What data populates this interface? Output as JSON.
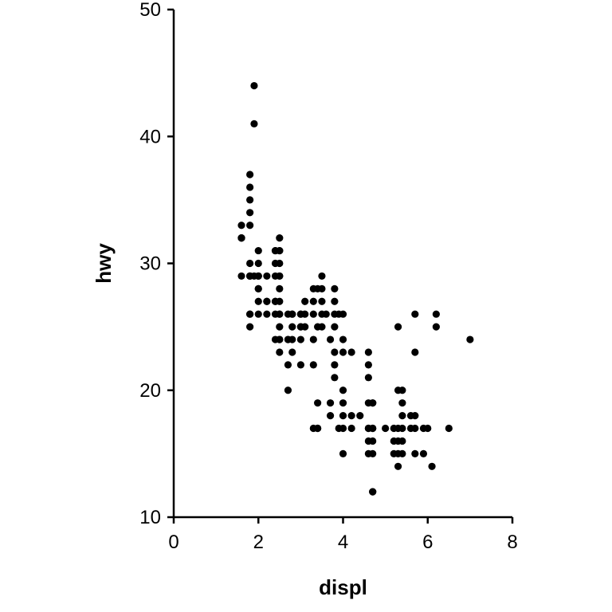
{
  "chart_data": {
    "type": "scatter",
    "title": "",
    "xlabel": "displ",
    "ylabel": "hwy",
    "xlim": [
      0,
      8
    ],
    "ylim": [
      10,
      50
    ],
    "xticks": [
      0,
      2,
      4,
      6,
      8
    ],
    "yticks": [
      10,
      20,
      30,
      40,
      50
    ],
    "grid": false,
    "legend": "none",
    "point_color": "#000000",
    "points": [
      [
        1.6,
        33
      ],
      [
        1.6,
        32
      ],
      [
        1.6,
        32
      ],
      [
        1.6,
        29
      ],
      [
        1.6,
        32
      ],
      [
        1.8,
        29
      ],
      [
        1.8,
        29
      ],
      [
        1.8,
        29
      ],
      [
        1.8,
        26
      ],
      [
        1.8,
        25
      ],
      [
        1.8,
        30
      ],
      [
        1.8,
        33
      ],
      [
        1.8,
        34
      ],
      [
        1.8,
        35
      ],
      [
        1.8,
        36
      ],
      [
        1.8,
        37
      ],
      [
        1.8,
        29
      ],
      [
        1.8,
        26
      ],
      [
        1.9,
        44
      ],
      [
        1.9,
        41
      ],
      [
        1.9,
        29
      ],
      [
        2.0,
        31
      ],
      [
        2.0,
        30
      ],
      [
        2.0,
        29
      ],
      [
        2.0,
        28
      ],
      [
        2.0,
        27
      ],
      [
        2.0,
        26
      ],
      [
        2.0,
        29
      ],
      [
        2.0,
        29
      ],
      [
        2.0,
        28
      ],
      [
        2.2,
        29
      ],
      [
        2.2,
        27
      ],
      [
        2.2,
        26
      ],
      [
        2.2,
        27
      ],
      [
        2.4,
        29
      ],
      [
        2.4,
        27
      ],
      [
        2.4,
        26
      ],
      [
        2.4,
        24
      ],
      [
        2.4,
        30
      ],
      [
        2.4,
        31
      ],
      [
        2.4,
        31
      ],
      [
        2.4,
        27
      ],
      [
        2.5,
        32
      ],
      [
        2.5,
        31
      ],
      [
        2.5,
        30
      ],
      [
        2.5,
        29
      ],
      [
        2.5,
        28
      ],
      [
        2.5,
        27
      ],
      [
        2.5,
        26
      ],
      [
        2.5,
        25
      ],
      [
        2.5,
        24
      ],
      [
        2.5,
        23
      ],
      [
        2.5,
        29
      ],
      [
        2.5,
        26
      ],
      [
        2.5,
        24
      ],
      [
        2.5,
        31
      ],
      [
        2.7,
        26
      ],
      [
        2.7,
        24
      ],
      [
        2.7,
        22
      ],
      [
        2.7,
        20
      ],
      [
        2.7,
        24
      ],
      [
        2.8,
        26
      ],
      [
        2.8,
        25
      ],
      [
        2.8,
        24
      ],
      [
        2.8,
        23
      ],
      [
        2.8,
        26
      ],
      [
        3.0,
        26
      ],
      [
        3.0,
        25
      ],
      [
        3.0,
        24
      ],
      [
        3.0,
        22
      ],
      [
        3.0,
        26
      ],
      [
        3.0,
        25
      ],
      [
        3.1,
        27
      ],
      [
        3.1,
        26
      ],
      [
        3.1,
        25
      ],
      [
        3.3,
        28
      ],
      [
        3.3,
        27
      ],
      [
        3.3,
        26
      ],
      [
        3.3,
        24
      ],
      [
        3.3,
        22
      ],
      [
        3.3,
        17
      ],
      [
        3.4,
        28
      ],
      [
        3.4,
        25
      ],
      [
        3.4,
        19
      ],
      [
        3.4,
        17
      ],
      [
        3.4,
        17
      ],
      [
        3.5,
        29
      ],
      [
        3.5,
        27
      ],
      [
        3.5,
        26
      ],
      [
        3.5,
        25
      ],
      [
        3.5,
        28
      ],
      [
        3.6,
        26
      ],
      [
        3.7,
        24
      ],
      [
        3.7,
        19
      ],
      [
        3.7,
        18
      ],
      [
        3.8,
        28
      ],
      [
        3.8,
        27
      ],
      [
        3.8,
        26
      ],
      [
        3.8,
        25
      ],
      [
        3.8,
        23
      ],
      [
        3.8,
        21
      ],
      [
        3.8,
        22
      ],
      [
        3.9,
        26
      ],
      [
        3.9,
        17
      ],
      [
        4.0,
        26
      ],
      [
        4.0,
        24
      ],
      [
        4.0,
        23
      ],
      [
        4.0,
        20
      ],
      [
        4.0,
        19
      ],
      [
        4.0,
        18
      ],
      [
        4.0,
        17
      ],
      [
        4.0,
        15
      ],
      [
        4.2,
        23
      ],
      [
        4.2,
        18
      ],
      [
        4.2,
        17
      ],
      [
        4.4,
        18
      ],
      [
        4.6,
        23
      ],
      [
        4.6,
        22
      ],
      [
        4.6,
        21
      ],
      [
        4.6,
        19
      ],
      [
        4.6,
        17
      ],
      [
        4.6,
        16
      ],
      [
        4.6,
        15
      ],
      [
        4.6,
        17
      ],
      [
        4.7,
        19
      ],
      [
        4.7,
        17
      ],
      [
        4.7,
        16
      ],
      [
        4.7,
        15
      ],
      [
        4.7,
        12
      ],
      [
        4.7,
        12
      ],
      [
        4.7,
        19
      ],
      [
        4.7,
        17
      ],
      [
        5.0,
        17
      ],
      [
        5.2,
        17
      ],
      [
        5.2,
        16
      ],
      [
        5.2,
        15
      ],
      [
        5.3,
        25
      ],
      [
        5.3,
        20
      ],
      [
        5.3,
        17
      ],
      [
        5.3,
        16
      ],
      [
        5.3,
        15
      ],
      [
        5.3,
        14
      ],
      [
        5.4,
        20
      ],
      [
        5.4,
        18
      ],
      [
        5.4,
        17
      ],
      [
        5.4,
        16
      ],
      [
        5.4,
        15
      ],
      [
        5.4,
        19
      ],
      [
        5.6,
        18
      ],
      [
        5.6,
        17
      ],
      [
        5.7,
        26
      ],
      [
        5.7,
        23
      ],
      [
        5.7,
        18
      ],
      [
        5.7,
        17
      ],
      [
        5.7,
        15
      ],
      [
        5.9,
        17
      ],
      [
        5.9,
        15
      ],
      [
        6.0,
        17
      ],
      [
        6.1,
        14
      ],
      [
        6.2,
        26
      ],
      [
        6.2,
        25
      ],
      [
        6.5,
        17
      ],
      [
        7.0,
        24
      ]
    ]
  }
}
